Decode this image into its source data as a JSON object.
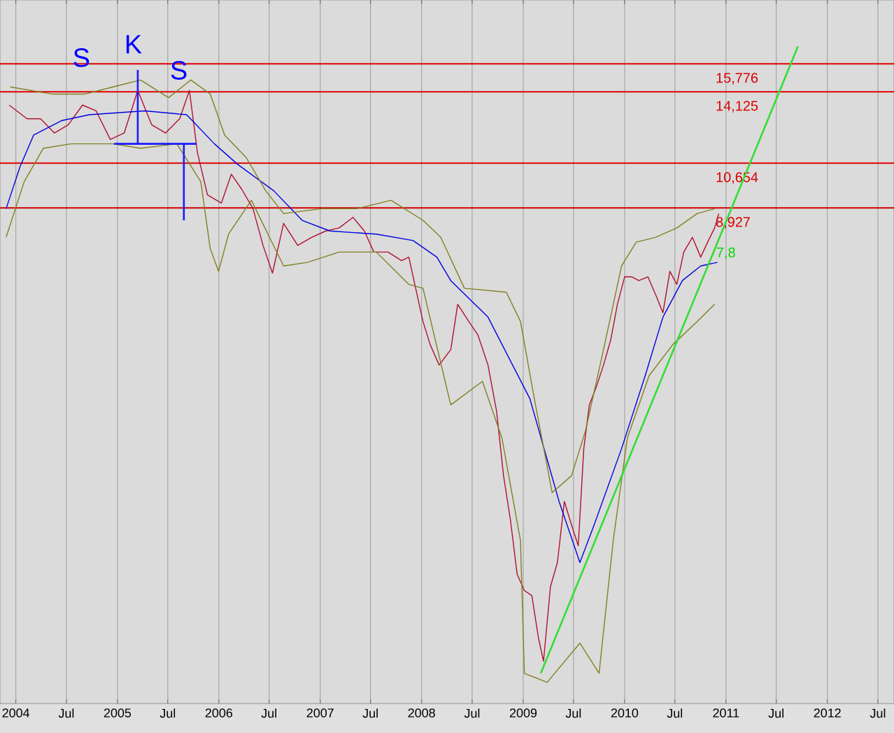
{
  "chart_data": {
    "type": "line",
    "log": true,
    "grid": "x",
    "marker": "none",
    "xlim": [
      "2003-11-05",
      "2012-08-28"
    ],
    "ylim": [
      1260,
      20300
    ],
    "yticks": [
      {
        "value": 8927,
        "label": "8,927"
      },
      {
        "value": 10654,
        "label": "10,654"
      },
      {
        "value": 14125,
        "label": "14,125"
      },
      {
        "value": 15776,
        "label": "15,776"
      }
    ],
    "xticks": [
      {
        "value": "2004-01-01",
        "label": "2004"
      },
      {
        "value": "2004-07-01",
        "label": "Jul"
      },
      {
        "value": "2005-01-01",
        "label": "2005"
      },
      {
        "value": "2005-07-01",
        "label": "Jul"
      },
      {
        "value": "2006-01-01",
        "label": "2006"
      },
      {
        "value": "2006-07-01",
        "label": "Jul"
      },
      {
        "value": "2007-01-01",
        "label": "2007"
      },
      {
        "value": "2007-07-01",
        "label": "Jul"
      },
      {
        "value": "2008-01-01",
        "label": "2008"
      },
      {
        "value": "2008-07-01",
        "label": "Jul"
      },
      {
        "value": "2009-01-01",
        "label": "2009"
      },
      {
        "value": "2009-07-01",
        "label": "Jul"
      },
      {
        "value": "2010-01-01",
        "label": "2010"
      },
      {
        "value": "2010-07-01",
        "label": "Jul"
      },
      {
        "value": "2011-01-01",
        "label": "2011"
      },
      {
        "value": "2011-07-01",
        "label": "Jul"
      },
      {
        "value": "2012-01-01",
        "label": "2012"
      },
      {
        "value": "2012-07-01",
        "label": "Jul"
      }
    ],
    "series": [
      {
        "color": "#b01030",
        "x": [
          "2003-12-08",
          "2004-02-10",
          "2004-03-30",
          "2004-05-19",
          "2004-07-08",
          "2004-08-28",
          "2004-10-16",
          "2004-12-06",
          "2005-01-25",
          "2005-03-15",
          "2005-05-04",
          "2005-06-23",
          "2005-08-13",
          "2005-09-17",
          "2005-10-16",
          "2005-11-21",
          "2006-01-10",
          "2006-02-15",
          "2006-03-25",
          "2006-05-04",
          "2006-06-09",
          "2006-07-13",
          "2006-08-22",
          "2006-10-12",
          "2006-12-01",
          "2007-01-21",
          "2007-03-10",
          "2007-04-29",
          "2007-06-09",
          "2007-07-13",
          "2007-09-02",
          "2007-10-21",
          "2007-11-16",
          "2008-01-06",
          "2008-02-01",
          "2008-03-04",
          "2008-04-15",
          "2008-05-10",
          "2008-06-19",
          "2008-07-22",
          "2008-08-27",
          "2008-09-27",
          "2008-10-22",
          "2008-11-16",
          "2008-12-10",
          "2009-01-05",
          "2009-02-01",
          "2009-02-25",
          "2009-03-15",
          "2009-04-09",
          "2009-05-04",
          "2009-05-29",
          "2009-06-24",
          "2009-07-18",
          "2009-08-07",
          "2009-08-27",
          "2009-09-21",
          "2009-10-17",
          "2009-11-12",
          "2009-12-06",
          "2010-01-01",
          "2010-01-27",
          "2010-02-21",
          "2010-03-26",
          "2010-04-25",
          "2010-05-19",
          "2010-06-13",
          "2010-07-08",
          "2010-08-02",
          "2010-09-02",
          "2010-10-02",
          "2010-10-27",
          "2010-11-21",
          "2010-12-06"
        ],
        "values": [
          13400,
          12700,
          12700,
          12000,
          12400,
          13400,
          13100,
          11700,
          12000,
          14200,
          12400,
          12000,
          12700,
          14200,
          11100,
          9400,
          9100,
          10200,
          9600,
          8900,
          7700,
          6900,
          8400,
          7700,
          7950,
          8150,
          8250,
          8600,
          8150,
          7500,
          7500,
          7250,
          7350,
          5700,
          5200,
          4800,
          5100,
          6100,
          5700,
          5400,
          4800,
          4000,
          3100,
          2600,
          2100,
          1970,
          1930,
          1630,
          1490,
          2000,
          2200,
          2800,
          2550,
          2350,
          3450,
          4100,
          4400,
          4800,
          5300,
          6100,
          6800,
          6800,
          6700,
          6800,
          6300,
          5900,
          6950,
          6600,
          7500,
          7950,
          7350,
          7800,
          8250,
          8730
        ]
      },
      {
        "color": "#0000e0",
        "x": [
          "2003-11-27",
          "2004-01-16",
          "2004-03-05",
          "2004-06-13",
          "2004-09-22",
          "2005-04-10",
          "2005-09-07",
          "2005-12-16",
          "2006-03-10",
          "2006-07-18",
          "2006-10-28",
          "2007-02-05",
          "2007-07-22",
          "2007-12-01",
          "2008-02-25",
          "2008-04-15",
          "2008-08-27",
          "2009-01-25",
          "2009-05-10",
          "2009-07-24",
          "2009-09-13",
          "2009-12-21",
          "2010-03-16",
          "2010-05-19",
          "2010-07-28",
          "2010-10-02",
          "2010-12-01"
        ],
        "values": [
          8900,
          10500,
          11900,
          12600,
          12900,
          13100,
          12900,
          11500,
          10600,
          9550,
          8500,
          8150,
          8050,
          7850,
          7350,
          6700,
          5800,
          4200,
          2800,
          2200,
          2550,
          3450,
          4600,
          5800,
          6700,
          7100,
          7200
        ]
      },
      {
        "color": "#808020",
        "x": [
          "2003-12-12",
          "2004-05-09",
          "2004-09-07",
          "2004-12-16",
          "2005-03-25",
          "2005-07-04",
          "2005-09-22",
          "2005-12-01",
          "2006-01-22",
          "2006-04-09",
          "2006-06-19",
          "2006-08-22",
          "2007-01-06",
          "2007-05-13",
          "2007-09-13",
          "2008-01-06",
          "2008-03-10",
          "2008-06-03",
          "2008-11-01",
          "2008-12-22",
          "2009-02-10",
          "2009-04-15",
          "2009-06-24",
          "2009-08-13",
          "2009-10-17",
          "2009-12-21",
          "2010-02-12",
          "2010-04-22",
          "2010-07-08",
          "2010-09-19",
          "2010-11-21"
        ],
        "values": [
          14400,
          14000,
          14000,
          14400,
          14800,
          13800,
          14800,
          14000,
          11900,
          10900,
          9550,
          8730,
          8900,
          8900,
          9200,
          8500,
          7950,
          6500,
          6400,
          5700,
          4200,
          2900,
          3100,
          3700,
          5100,
          7100,
          7800,
          7950,
          8250,
          8730,
          8900
        ]
      },
      {
        "color": "#808020",
        "x": [
          "2003-11-27",
          "2004-01-31",
          "2004-04-09",
          "2004-07-18",
          "2004-12-16",
          "2005-03-25",
          "2005-08-03",
          "2005-10-28",
          "2005-12-01",
          "2005-12-31",
          "2006-02-05",
          "2006-04-28",
          "2006-08-22",
          "2006-11-16",
          "2007-03-10",
          "2007-07-22",
          "2007-11-16",
          "2008-01-06",
          "2008-04-15",
          "2008-08-07",
          "2008-10-16",
          "2008-12-22",
          "2009-01-05",
          "2009-03-28",
          "2009-07-24",
          "2009-10-01",
          "2009-11-21",
          "2010-01-11",
          "2010-03-30",
          "2010-06-23",
          "2010-09-19",
          "2010-11-21"
        ],
        "values": [
          7950,
          9900,
          11300,
          11500,
          11500,
          11300,
          11500,
          9900,
          7600,
          6950,
          8050,
          9200,
          7100,
          7200,
          7500,
          7500,
          6600,
          6500,
          4100,
          4500,
          3600,
          2400,
          1420,
          1370,
          1600,
          1420,
          2400,
          3600,
          4600,
          5200,
          5700,
          6100
        ]
      },
      {
        "color": "#33dd33",
        "x": [
          "2009-03-05",
          "2011-09-17"
        ],
        "values": [
          1420,
          16900
        ]
      },
      {
        "color": "#1a1aff",
        "x": [
          "2004-12-20",
          "2005-10-12"
        ],
        "values": [
          11500,
          11500
        ]
      },
      {
        "color": "#1a1aff",
        "x": [
          "2005-03-15",
          "2005-03-15"
        ],
        "values": [
          15400,
          11500
        ]
      },
      {
        "color": "#1a1aff",
        "x": [
          "2005-08-28",
          "2005-08-28"
        ],
        "values": [
          11500,
          8500
        ]
      }
    ],
    "ref_lines": [
      {
        "axis": "y",
        "value": 15776,
        "color": "#e00000"
      },
      {
        "axis": "y",
        "value": 14125,
        "color": "#e00000"
      },
      {
        "axis": "y",
        "value": 10654,
        "color": "#e00000"
      },
      {
        "axis": "y",
        "value": 8927,
        "color": "#d00000"
      }
    ],
    "annotations": [
      "S",
      "K",
      "S",
      "7,8"
    ]
  }
}
